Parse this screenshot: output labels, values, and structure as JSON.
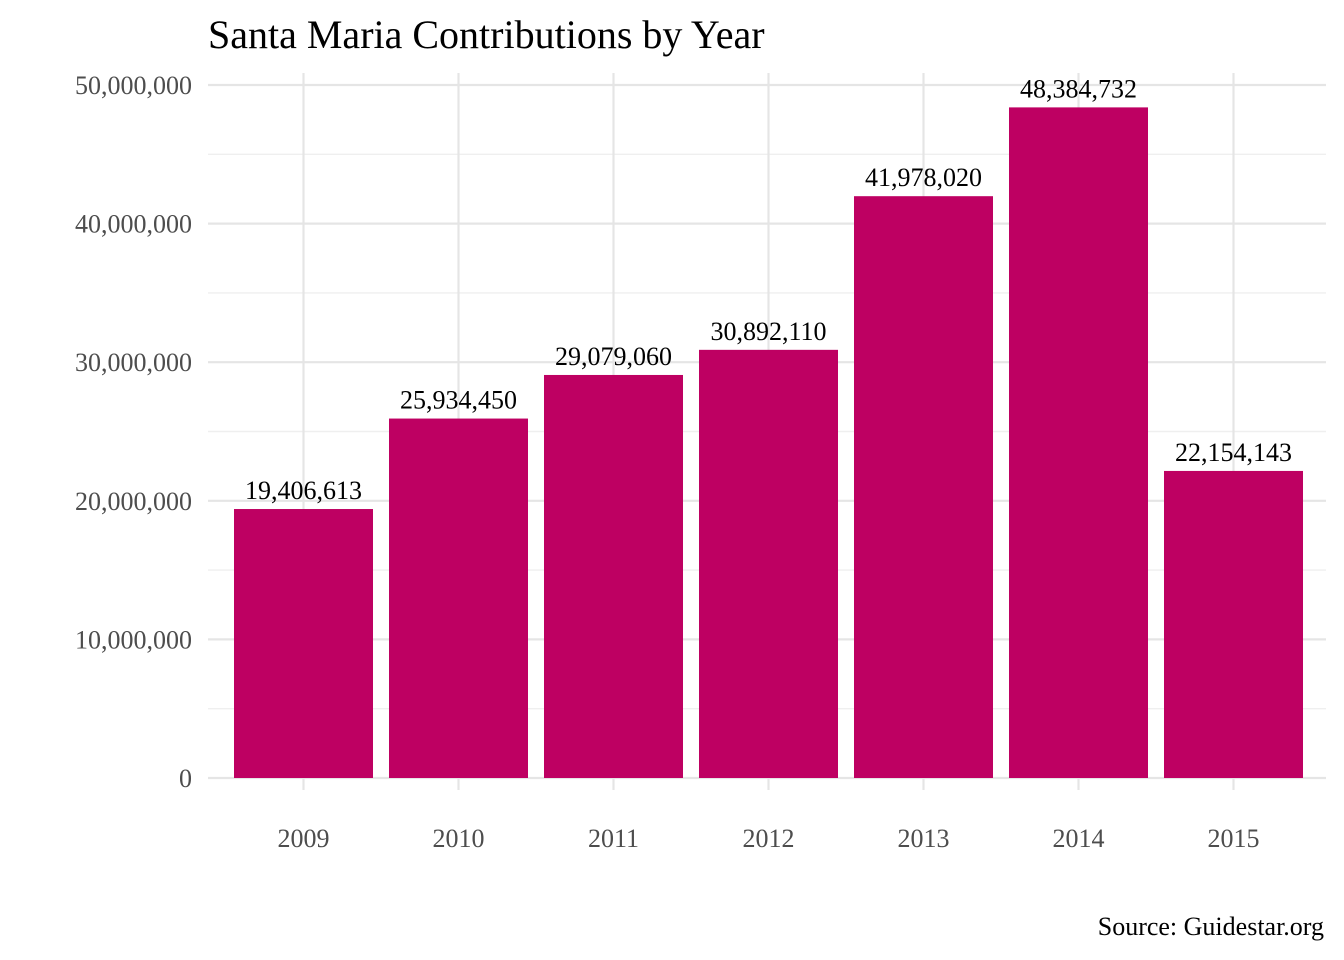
{
  "chart_data": {
    "type": "bar",
    "title": "Santa Maria Contributions by Year",
    "caption": "Source: Guidestar.org",
    "xlabel": "",
    "ylabel": "",
    "categories": [
      "2009",
      "2010",
      "2011",
      "2012",
      "2013",
      "2014",
      "2015"
    ],
    "values": [
      19406613,
      25934450,
      29079060,
      30892110,
      41978020,
      48384732,
      22154143
    ],
    "value_labels": [
      "19,406,613",
      "25,934,450",
      "29,079,060",
      "30,892,110",
      "41,978,020",
      "48,384,732",
      "22,154,143"
    ],
    "ylim": [
      0,
      50000000
    ],
    "y_ticks": [
      0,
      10000000,
      20000000,
      30000000,
      40000000,
      50000000
    ],
    "y_tick_labels": [
      "0",
      "10,000,000",
      "20,000,000",
      "30,000,000",
      "40,000,000",
      "50,000,000"
    ],
    "grid": true,
    "legend": "none",
    "bar_color": "#BE0062"
  }
}
